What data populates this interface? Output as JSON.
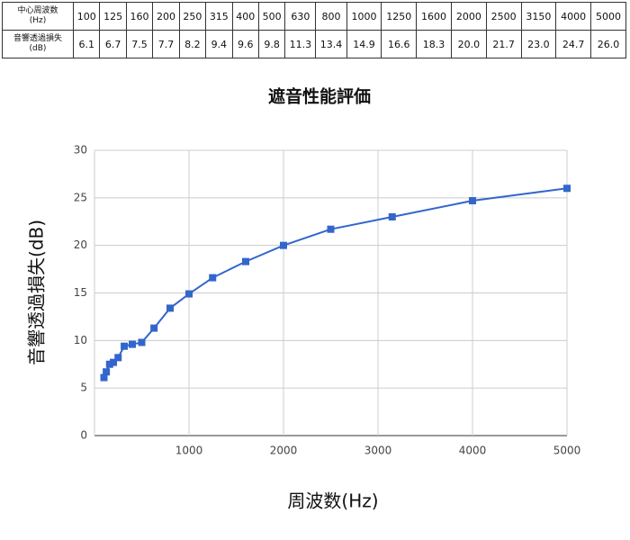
{
  "table": {
    "row_headers": [
      [
        "中心周波数",
        "(Hz)"
      ],
      [
        "音響透過損失",
        "(dB)"
      ]
    ],
    "rows": [
      [
        "100",
        "125",
        "160",
        "200",
        "250",
        "315",
        "400",
        "500",
        "630",
        "800",
        "1000",
        "1250",
        "1600",
        "2000",
        "2500",
        "3150",
        "4000",
        "5000"
      ],
      [
        "6.1",
        "6.7",
        "7.5",
        "7.7",
        "8.2",
        "9.4",
        "9.6",
        "9.8",
        "11.3",
        "13.4",
        "14.9",
        "16.6",
        "18.3",
        "20.0",
        "21.7",
        "23.0",
        "24.7",
        "26.0"
      ]
    ]
  },
  "chart_data": {
    "type": "line",
    "title": "遮音性能評価",
    "xlabel": "周波数(Hz)",
    "ylabel": "音響透過損失(dB)",
    "x": [
      100,
      125,
      160,
      200,
      250,
      315,
      400,
      500,
      630,
      800,
      1000,
      1250,
      1600,
      2000,
      2500,
      3150,
      4000,
      5000
    ],
    "series": [
      {
        "name": "音響透過損失",
        "color": "#3366cc",
        "values": [
          6.1,
          6.7,
          7.5,
          7.7,
          8.2,
          9.4,
          9.6,
          9.8,
          11.3,
          13.4,
          14.9,
          16.6,
          18.3,
          20.0,
          21.7,
          23.0,
          24.7,
          26.0
        ]
      }
    ],
    "xlim": [
      0,
      5000
    ],
    "xticks": [
      1000,
      2000,
      3000,
      4000,
      5000
    ],
    "ylim": [
      0,
      30
    ],
    "yticks": [
      0,
      5,
      10,
      15,
      20,
      25,
      30
    ],
    "grid": true
  }
}
